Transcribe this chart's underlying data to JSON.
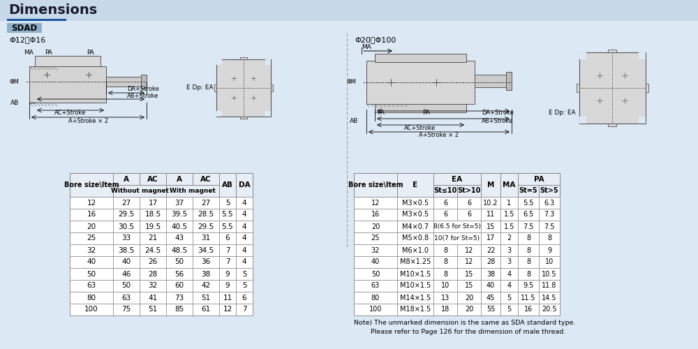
{
  "title": "Dimensions",
  "subtitle": "SDAD",
  "bg_color": "#dce9f5",
  "white": "#ffffff",
  "table_header_bg": "#ffffff",
  "table_alt_bg": "#ffffff",
  "border_color": "#888888",
  "left_subtitle": "Φ12、Φ16",
  "right_subtitle": "Φ20～Φ100",
  "left_rows": [
    [
      "12",
      "27",
      "17",
      "37",
      "27",
      "5",
      "4"
    ],
    [
      "16",
      "29.5",
      "18.5",
      "39.5",
      "28.5",
      "5.5",
      "4"
    ],
    [
      "20",
      "30.5",
      "19.5",
      "40.5",
      "29.5",
      "5.5",
      "4"
    ],
    [
      "25",
      "33",
      "21",
      "43",
      "31",
      "6",
      "4"
    ],
    [
      "32",
      "38.5",
      "24.5",
      "48.5",
      "34.5",
      "7",
      "4"
    ],
    [
      "40",
      "40",
      "26",
      "50",
      "36",
      "7",
      "4"
    ],
    [
      "50",
      "46",
      "28",
      "56",
      "38",
      "9",
      "5"
    ],
    [
      "63",
      "50",
      "32",
      "60",
      "42",
      "9",
      "5"
    ],
    [
      "80",
      "63",
      "41",
      "73",
      "51",
      "11",
      "6"
    ],
    [
      "100",
      "75",
      "51",
      "85",
      "61",
      "12",
      "7"
    ]
  ],
  "right_rows": [
    [
      "12",
      "M3×0.5",
      "6",
      "6",
      "10.2",
      "1",
      "5.5",
      "6.3"
    ],
    [
      "16",
      "M3×0.5",
      "6",
      "6",
      "11",
      "1.5",
      "6.5",
      "7.3"
    ],
    [
      "20",
      "M4×0.7",
      "8(6.5 for St=5)",
      "",
      "15",
      "1.5",
      "7.5",
      "7.5"
    ],
    [
      "25",
      "M5×0.8",
      "10(7 for St=5)",
      "",
      "17",
      "2",
      "8",
      "8"
    ],
    [
      "32",
      "M6×1.0",
      "8",
      "12",
      "22",
      "3",
      "8",
      "9"
    ],
    [
      "40",
      "M8×1.25",
      "8",
      "12",
      "28",
      "3",
      "8",
      "10"
    ],
    [
      "50",
      "M10×1.5",
      "8",
      "15",
      "38",
      "4",
      "8",
      "10.5"
    ],
    [
      "63",
      "M10×1.5",
      "10",
      "15",
      "40",
      "4",
      "9.5",
      "11.8"
    ],
    [
      "80",
      "M14×1.5",
      "13",
      "20",
      "45",
      "5",
      "11.5",
      "14.5"
    ],
    [
      "100",
      "M18×1.5",
      "18",
      "20",
      "55",
      "5",
      "16",
      "20.5"
    ]
  ],
  "note_line1": "Note) The unmarked dimension is the same as SDA standard type.",
  "note_line2": "        Please refer to Page 126 for the dimension of male thread."
}
